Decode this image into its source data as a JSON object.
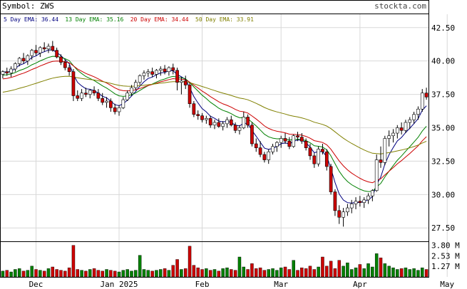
{
  "header": {
    "symbol_label": "Symbol: ZWS",
    "site": "stockta.com"
  },
  "legend": [
    {
      "label": "5 Day EMA: 36.44",
      "color": "#000080"
    },
    {
      "label": "13 Day EMA: 35.16",
      "color": "#008000"
    },
    {
      "label": "20 Day EMA: 34.44",
      "color": "#cc0000"
    },
    {
      "label": "50 Day EMA: 33.91",
      "color": "#808000"
    }
  ],
  "colors": {
    "up": "#ffffff",
    "down": "#cc0000",
    "volume": "#008000",
    "volume_down": "#cc0000",
    "grid": "#d8d8d8",
    "frame": "#000000"
  },
  "chart_data": {
    "type": "candlestick",
    "price_axis": {
      "ticks": [
        "42.50",
        "40.00",
        "37.50",
        "35.00",
        "32.50",
        "30.00",
        "27.50"
      ],
      "range": [
        26.5,
        43.5
      ]
    },
    "volume_axis": {
      "ticks": [
        "3.80 M",
        "2.53 M",
        "1.27 M"
      ],
      "range": [
        0,
        4.2
      ]
    },
    "x_labels": [
      {
        "label": "Dec",
        "index": 8
      },
      {
        "label": "Jan 2025",
        "index": 28
      },
      {
        "label": "Feb",
        "index": 48
      },
      {
        "label": "Mar",
        "index": 67
      },
      {
        "label": "Apr",
        "index": 86
      },
      {
        "label": "May",
        "index": 107
      }
    ],
    "ohlc": [
      [
        39.0,
        39.3,
        38.7,
        39.2
      ],
      [
        39.2,
        39.5,
        38.9,
        39.1
      ],
      [
        39.1,
        39.6,
        38.8,
        39.4
      ],
      [
        39.4,
        39.9,
        39.2,
        39.8
      ],
      [
        39.8,
        40.3,
        39.6,
        40.2
      ],
      [
        40.2,
        40.6,
        39.8,
        40.0
      ],
      [
        40.0,
        40.5,
        39.7,
        40.4
      ],
      [
        40.4,
        40.9,
        40.1,
        40.8
      ],
      [
        40.8,
        41.2,
        40.4,
        40.6
      ],
      [
        40.6,
        41.1,
        40.3,
        41.0
      ],
      [
        41.0,
        41.4,
        40.7,
        40.9
      ],
      [
        40.9,
        41.3,
        40.6,
        41.1
      ],
      [
        41.1,
        41.5,
        40.7,
        40.8
      ],
      [
        40.8,
        41.0,
        40.2,
        40.3
      ],
      [
        40.3,
        40.5,
        39.7,
        39.9
      ],
      [
        39.9,
        40.1,
        39.3,
        39.5
      ],
      [
        39.5,
        39.7,
        38.9,
        39.2
      ],
      [
        39.2,
        39.4,
        37.0,
        37.4
      ],
      [
        37.4,
        37.8,
        37.0,
        37.2
      ],
      [
        37.2,
        37.9,
        37.0,
        37.6
      ],
      [
        37.6,
        38.0,
        37.3,
        37.5
      ],
      [
        37.5,
        37.9,
        37.2,
        37.8
      ],
      [
        37.8,
        38.1,
        37.4,
        37.6
      ],
      [
        37.6,
        37.9,
        37.0,
        37.2
      ],
      [
        37.2,
        37.6,
        36.7,
        36.9
      ],
      [
        36.9,
        37.3,
        36.5,
        37.0
      ],
      [
        37.0,
        37.2,
        36.2,
        36.5
      ],
      [
        36.5,
        36.8,
        36.0,
        36.2
      ],
      [
        36.2,
        36.7,
        35.9,
        36.5
      ],
      [
        36.5,
        37.3,
        36.4,
        37.1
      ],
      [
        37.1,
        37.8,
        37.0,
        37.6
      ],
      [
        37.6,
        38.2,
        37.4,
        38.0
      ],
      [
        38.0,
        38.6,
        37.8,
        38.4
      ],
      [
        38.4,
        39.0,
        38.2,
        38.9
      ],
      [
        38.9,
        39.3,
        38.6,
        39.1
      ],
      [
        39.1,
        39.4,
        38.8,
        39.2
      ],
      [
        39.2,
        39.5,
        38.8,
        39.0
      ],
      [
        39.0,
        39.4,
        38.7,
        39.3
      ],
      [
        39.3,
        39.6,
        38.9,
        39.4
      ],
      [
        39.4,
        39.7,
        39.0,
        39.2
      ],
      [
        39.2,
        39.6,
        38.9,
        39.5
      ],
      [
        39.5,
        39.8,
        39.0,
        39.3
      ],
      [
        39.3,
        39.5,
        37.8,
        38.4
      ],
      [
        38.4,
        38.8,
        37.5,
        38.5
      ],
      [
        38.5,
        38.9,
        37.9,
        38.2
      ],
      [
        38.2,
        38.4,
        36.5,
        36.8
      ],
      [
        36.8,
        37.0,
        35.8,
        36.0
      ],
      [
        36.0,
        36.3,
        35.6,
        35.9
      ],
      [
        35.9,
        36.1,
        35.4,
        35.6
      ],
      [
        35.6,
        35.9,
        35.3,
        35.7
      ],
      [
        35.7,
        35.9,
        35.0,
        35.2
      ],
      [
        35.2,
        35.6,
        34.9,
        35.4
      ],
      [
        35.4,
        35.7,
        35.0,
        35.1
      ],
      [
        35.1,
        35.5,
        34.8,
        35.3
      ],
      [
        35.3,
        35.8,
        35.0,
        35.6
      ],
      [
        35.6,
        35.9,
        35.1,
        35.2
      ],
      [
        35.2,
        35.4,
        34.6,
        34.8
      ],
      [
        34.8,
        35.2,
        34.5,
        35.0
      ],
      [
        35.0,
        36.2,
        34.9,
        35.8
      ],
      [
        35.8,
        36.0,
        35.0,
        35.2
      ],
      [
        35.2,
        35.4,
        33.6,
        33.8
      ],
      [
        33.8,
        34.2,
        33.2,
        33.5
      ],
      [
        33.5,
        34.0,
        32.8,
        33.0
      ],
      [
        33.0,
        33.2,
        32.4,
        32.6
      ],
      [
        32.6,
        33.4,
        32.3,
        33.2
      ],
      [
        33.2,
        33.8,
        33.0,
        33.6
      ],
      [
        33.6,
        34.0,
        33.2,
        33.9
      ],
      [
        33.9,
        34.4,
        33.5,
        34.2
      ],
      [
        34.2,
        34.6,
        33.8,
        34.0
      ],
      [
        34.0,
        34.3,
        33.4,
        33.6
      ],
      [
        33.6,
        34.5,
        33.5,
        34.4
      ],
      [
        34.4,
        34.7,
        34.0,
        34.3
      ],
      [
        34.3,
        34.6,
        33.8,
        34.0
      ],
      [
        34.0,
        34.2,
        33.3,
        33.5
      ],
      [
        33.5,
        33.8,
        32.6,
        32.9
      ],
      [
        32.9,
        33.1,
        32.0,
        32.3
      ],
      [
        32.3,
        33.6,
        32.1,
        33.4
      ],
      [
        33.4,
        33.8,
        33.0,
        33.2
      ],
      [
        33.2,
        33.4,
        31.8,
        32.1
      ],
      [
        32.1,
        32.3,
        30.0,
        30.2
      ],
      [
        30.2,
        30.4,
        28.4,
        28.8
      ],
      [
        28.8,
        29.2,
        27.8,
        28.3
      ],
      [
        28.3,
        29.0,
        27.6,
        28.7
      ],
      [
        28.7,
        29.3,
        28.4,
        29.0
      ],
      [
        29.0,
        29.6,
        28.6,
        29.3
      ],
      [
        29.3,
        29.8,
        28.9,
        29.5
      ],
      [
        29.5,
        29.9,
        29.1,
        29.4
      ],
      [
        29.4,
        29.8,
        29.0,
        29.6
      ],
      [
        29.6,
        30.1,
        29.3,
        29.9
      ],
      [
        29.9,
        30.4,
        29.5,
        30.3
      ],
      [
        30.3,
        33.0,
        30.2,
        32.6
      ],
      [
        32.6,
        33.6,
        32.0,
        32.4
      ],
      [
        32.4,
        34.4,
        32.2,
        34.2
      ],
      [
        34.2,
        34.8,
        33.6,
        34.4
      ],
      [
        34.4,
        34.9,
        33.9,
        34.6
      ],
      [
        34.6,
        35.2,
        34.2,
        35.0
      ],
      [
        35.0,
        35.4,
        34.5,
        34.8
      ],
      [
        34.8,
        35.6,
        34.6,
        35.4
      ],
      [
        35.4,
        35.8,
        34.9,
        35.6
      ],
      [
        35.6,
        36.2,
        35.3,
        36.0
      ],
      [
        36.0,
        36.6,
        35.6,
        36.4
      ],
      [
        36.4,
        37.9,
        36.2,
        37.6
      ],
      [
        37.6,
        38.0,
        37.1,
        37.3
      ]
    ],
    "volume": [
      0.7,
      0.8,
      0.6,
      0.9,
      1.0,
      0.7,
      0.8,
      1.3,
      0.9,
      0.8,
      0.7,
      1.0,
      1.2,
      0.9,
      0.8,
      0.7,
      1.1,
      3.8,
      0.9,
      0.8,
      0.7,
      0.9,
      1.0,
      0.8,
      0.7,
      0.9,
      0.8,
      0.7,
      0.6,
      0.8,
      0.9,
      0.7,
      0.8,
      2.6,
      0.9,
      0.8,
      0.7,
      0.8,
      0.9,
      1.0,
      0.8,
      1.4,
      2.1,
      0.9,
      1.0,
      3.7,
      1.4,
      1.1,
      0.9,
      1.0,
      0.8,
      0.9,
      0.7,
      1.0,
      1.1,
      0.9,
      0.8,
      2.4,
      1.2,
      0.9,
      1.6,
      1.0,
      1.1,
      0.8,
      0.9,
      1.0,
      0.8,
      1.1,
      1.2,
      0.9,
      2.0,
      0.8,
      1.1,
      1.0,
      1.3,
      0.9,
      1.2,
      2.4,
      1.3,
      1.9,
      1.0,
      2.0,
      1.3,
      1.7,
      0.9,
      1.1,
      1.5,
      1.0,
      1.6,
      1.2,
      2.8,
      2.3,
      1.6,
      1.3,
      1.1,
      0.9,
      1.0,
      1.1,
      0.9,
      1.0,
      0.8,
      1.1,
      0.9
    ],
    "ema": [
      {
        "period": 5,
        "color": "#000080"
      },
      {
        "period": 13,
        "color": "#008000"
      },
      {
        "period": 20,
        "color": "#cc0000"
      },
      {
        "period": 50,
        "color": "#808000"
      }
    ]
  }
}
